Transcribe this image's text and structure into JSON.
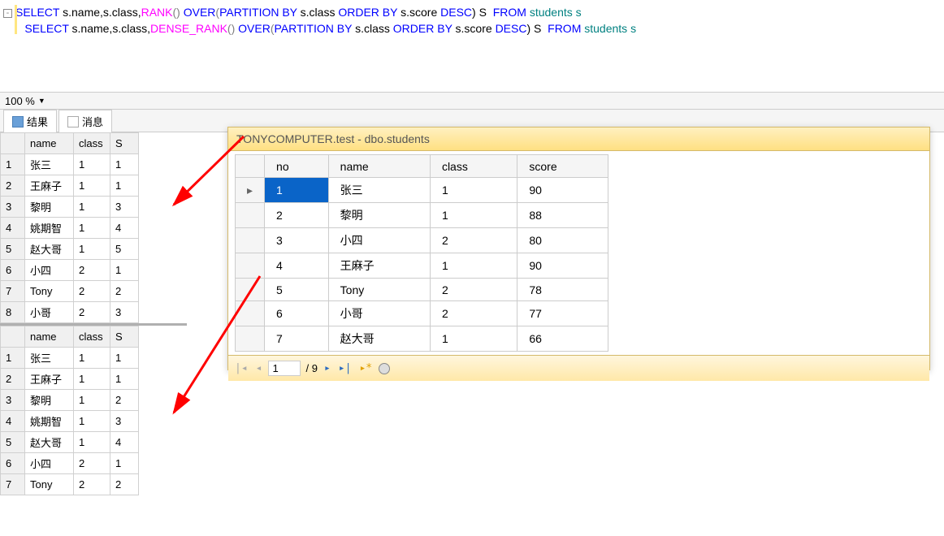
{
  "sql": {
    "line1_tokens": [
      "SELECT",
      " s.name,s.class,",
      "RANK",
      "() ",
      "OVER",
      "(",
      "PARTITION BY",
      " s.class ",
      "ORDER BY",
      " s.score ",
      "DESC",
      ") S  ",
      "FROM",
      " students s"
    ],
    "line1_classes": [
      "sq-b",
      "",
      "sq-f",
      "sq-g",
      "sq-b",
      "sq-g",
      "sq-b",
      "",
      "sq-b",
      "",
      "sq-b",
      "",
      "sq-b",
      "sq-t"
    ],
    "line2_tokens": [
      "SELECT",
      " s.name,s.class,",
      "DENSE_RANK",
      "() ",
      "OVER",
      "(",
      "PARTITION BY",
      " s.class ",
      "ORDER BY",
      " s.score ",
      "DESC",
      ") S  ",
      "FROM",
      " students s"
    ],
    "line2_classes": [
      "sq-b",
      "",
      "sq-f",
      "sq-g",
      "sq-b",
      "sq-g",
      "sq-b",
      "",
      "sq-b",
      "",
      "sq-b",
      "",
      "sq-b",
      "sq-t"
    ]
  },
  "zoom_value": "100 %",
  "tabs": {
    "results": "结果",
    "messages": "消息"
  },
  "result_headers": [
    "name",
    "class",
    "S"
  ],
  "result1_rows": [
    [
      "张三",
      "1",
      "1"
    ],
    [
      "王麻子",
      "1",
      "1"
    ],
    [
      "黎明",
      "1",
      "3"
    ],
    [
      "姚期智",
      "1",
      "4"
    ],
    [
      "赵大哥",
      "1",
      "5"
    ],
    [
      "小四",
      "2",
      "1"
    ],
    [
      "Tony",
      "2",
      "2"
    ],
    [
      "小哥",
      "2",
      "3"
    ]
  ],
  "result2_rows": [
    [
      "张三",
      "1",
      "1"
    ],
    [
      "王麻子",
      "1",
      "1"
    ],
    [
      "黎明",
      "1",
      "2"
    ],
    [
      "姚期智",
      "1",
      "3"
    ],
    [
      "赵大哥",
      "1",
      "4"
    ],
    [
      "小四",
      "2",
      "1"
    ],
    [
      "Tony",
      "2",
      "2"
    ]
  ],
  "data_window": {
    "title": "TONYCOMPUTER.test - dbo.students",
    "headers": [
      "no",
      "name",
      "class",
      "score"
    ],
    "rows": [
      [
        "1",
        "张三",
        "1",
        "90"
      ],
      [
        "2",
        "黎明",
        "1",
        "88"
      ],
      [
        "3",
        "小四",
        "2",
        "80"
      ],
      [
        "4",
        "王麻子",
        "1",
        "90"
      ],
      [
        "5",
        "Tony",
        "2",
        "78"
      ],
      [
        "6",
        "小哥",
        "2",
        "77"
      ],
      [
        "7",
        "赵大哥",
        "1",
        "66"
      ]
    ],
    "nav_current": "1",
    "nav_total": "/ 9"
  },
  "arrows": {
    "color": "#ff0000"
  }
}
